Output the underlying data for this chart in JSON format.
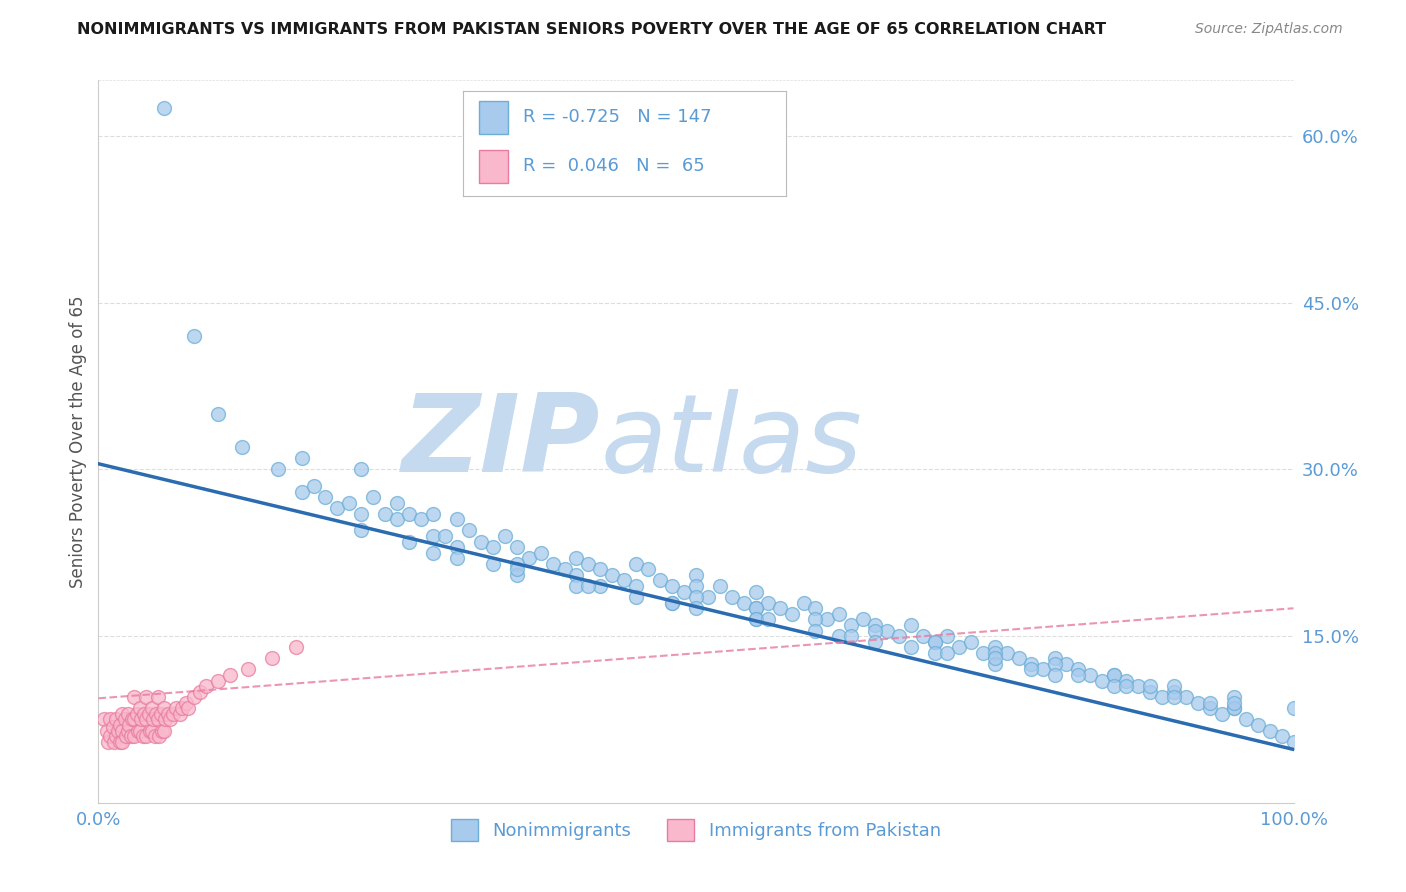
{
  "title": "NONIMMIGRANTS VS IMMIGRANTS FROM PAKISTAN SENIORS POVERTY OVER THE AGE OF 65 CORRELATION CHART",
  "source": "Source: ZipAtlas.com",
  "ylabel": "Seniors Poverty Over the Age of 65",
  "watermark_zip": "ZIP",
  "watermark_atlas": "atlas",
  "xlim": [
    0.0,
    1.0
  ],
  "ylim": [
    0.0,
    0.65
  ],
  "right_yticks": [
    0.15,
    0.3,
    0.45,
    0.6
  ],
  "right_yticklabels": [
    "15.0%",
    "30.0%",
    "45.0%",
    "60.0%"
  ],
  "xtick_positions": [
    0.0,
    1.0
  ],
  "xticklabels": [
    "0.0%",
    "100.0%"
  ],
  "nonimm_color": "#A8CAED",
  "nonimm_edge_color": "#6BAED6",
  "imm_color": "#F9B8CB",
  "imm_edge_color": "#E87BA0",
  "nonimm_line_color": "#2B6CB0",
  "imm_line_color": "#E87BA0",
  "title_color": "#1a1a1a",
  "axis_color": "#5B9BD5",
  "watermark_color": "#C5D9EF",
  "background_color": "#FFFFFF",
  "grid_color": "#DDDDDD",
  "nonimm_trend_x0": 0.0,
  "nonimm_trend_y0": 0.305,
  "nonimm_trend_x1": 1.0,
  "nonimm_trend_y1": 0.048,
  "imm_trend_x0": 0.0,
  "imm_trend_y0": 0.094,
  "imm_trend_x1": 1.0,
  "imm_trend_y1": 0.175,
  "nonimmigrants_x": [
    0.055,
    0.08,
    0.1,
    0.12,
    0.15,
    0.17,
    0.17,
    0.18,
    0.19,
    0.2,
    0.21,
    0.22,
    0.22,
    0.23,
    0.24,
    0.25,
    0.25,
    0.26,
    0.27,
    0.28,
    0.28,
    0.29,
    0.3,
    0.3,
    0.31,
    0.32,
    0.33,
    0.34,
    0.35,
    0.36,
    0.37,
    0.38,
    0.39,
    0.4,
    0.41,
    0.42,
    0.43,
    0.44,
    0.45,
    0.46,
    0.47,
    0.48,
    0.49,
    0.5,
    0.5,
    0.51,
    0.52,
    0.53,
    0.54,
    0.55,
    0.55,
    0.56,
    0.57,
    0.58,
    0.59,
    0.6,
    0.61,
    0.62,
    0.63,
    0.64,
    0.65,
    0.66,
    0.67,
    0.68,
    0.69,
    0.7,
    0.71,
    0.72,
    0.73,
    0.74,
    0.75,
    0.76,
    0.77,
    0.78,
    0.79,
    0.8,
    0.81,
    0.82,
    0.83,
    0.84,
    0.85,
    0.86,
    0.87,
    0.88,
    0.89,
    0.9,
    0.91,
    0.92,
    0.93,
    0.94,
    0.95,
    0.96,
    0.97,
    0.98,
    0.99,
    1.0,
    0.35,
    0.4,
    0.45,
    0.5,
    0.55,
    0.6,
    0.65,
    0.7,
    0.75,
    0.8,
    0.85,
    0.9,
    0.95,
    1.0,
    0.3,
    0.35,
    0.4,
    0.45,
    0.5,
    0.55,
    0.6,
    0.65,
    0.7,
    0.75,
    0.8,
    0.85,
    0.9,
    0.95,
    0.22,
    0.28,
    0.35,
    0.42,
    0.48,
    0.55,
    0.62,
    0.68,
    0.75,
    0.82,
    0.88,
    0.95,
    0.26,
    0.33,
    0.41,
    0.48,
    0.56,
    0.63,
    0.71,
    0.78,
    0.86,
    0.93
  ],
  "nonimmigrants_y": [
    0.625,
    0.42,
    0.35,
    0.32,
    0.3,
    0.31,
    0.28,
    0.285,
    0.275,
    0.265,
    0.27,
    0.3,
    0.26,
    0.275,
    0.26,
    0.255,
    0.27,
    0.26,
    0.255,
    0.26,
    0.24,
    0.24,
    0.255,
    0.23,
    0.245,
    0.235,
    0.23,
    0.24,
    0.23,
    0.22,
    0.225,
    0.215,
    0.21,
    0.22,
    0.215,
    0.21,
    0.205,
    0.2,
    0.215,
    0.21,
    0.2,
    0.195,
    0.19,
    0.205,
    0.195,
    0.185,
    0.195,
    0.185,
    0.18,
    0.175,
    0.19,
    0.18,
    0.175,
    0.17,
    0.18,
    0.175,
    0.165,
    0.17,
    0.16,
    0.165,
    0.16,
    0.155,
    0.15,
    0.16,
    0.15,
    0.145,
    0.15,
    0.14,
    0.145,
    0.135,
    0.14,
    0.135,
    0.13,
    0.125,
    0.12,
    0.13,
    0.125,
    0.12,
    0.115,
    0.11,
    0.115,
    0.11,
    0.105,
    0.1,
    0.095,
    0.1,
    0.095,
    0.09,
    0.085,
    0.08,
    0.085,
    0.075,
    0.07,
    0.065,
    0.06,
    0.055,
    0.215,
    0.205,
    0.195,
    0.185,
    0.175,
    0.165,
    0.155,
    0.145,
    0.135,
    0.125,
    0.115,
    0.105,
    0.095,
    0.085,
    0.22,
    0.205,
    0.195,
    0.185,
    0.175,
    0.165,
    0.155,
    0.145,
    0.135,
    0.125,
    0.115,
    0.105,
    0.095,
    0.085,
    0.245,
    0.225,
    0.21,
    0.195,
    0.18,
    0.165,
    0.15,
    0.14,
    0.13,
    0.115,
    0.105,
    0.09,
    0.235,
    0.215,
    0.195,
    0.18,
    0.165,
    0.15,
    0.135,
    0.12,
    0.105,
    0.09
  ],
  "immigrants_x": [
    0.005,
    0.007,
    0.008,
    0.01,
    0.01,
    0.012,
    0.013,
    0.015,
    0.015,
    0.016,
    0.018,
    0.018,
    0.02,
    0.02,
    0.02,
    0.022,
    0.023,
    0.025,
    0.025,
    0.026,
    0.027,
    0.028,
    0.03,
    0.03,
    0.03,
    0.032,
    0.033,
    0.035,
    0.035,
    0.036,
    0.037,
    0.038,
    0.04,
    0.04,
    0.04,
    0.042,
    0.043,
    0.045,
    0.045,
    0.046,
    0.047,
    0.048,
    0.05,
    0.05,
    0.051,
    0.052,
    0.053,
    0.055,
    0.055,
    0.056,
    0.058,
    0.06,
    0.062,
    0.065,
    0.068,
    0.07,
    0.073,
    0.075,
    0.08,
    0.085,
    0.09,
    0.1,
    0.11,
    0.125,
    0.145,
    0.165
  ],
  "immigrants_y": [
    0.075,
    0.065,
    0.055,
    0.075,
    0.06,
    0.068,
    0.055,
    0.075,
    0.06,
    0.065,
    0.07,
    0.055,
    0.08,
    0.065,
    0.055,
    0.075,
    0.06,
    0.08,
    0.065,
    0.07,
    0.06,
    0.075,
    0.095,
    0.075,
    0.06,
    0.08,
    0.065,
    0.085,
    0.065,
    0.075,
    0.06,
    0.08,
    0.095,
    0.075,
    0.06,
    0.08,
    0.065,
    0.085,
    0.065,
    0.075,
    0.06,
    0.08,
    0.095,
    0.075,
    0.06,
    0.08,
    0.065,
    0.085,
    0.065,
    0.075,
    0.08,
    0.075,
    0.08,
    0.085,
    0.08,
    0.085,
    0.09,
    0.085,
    0.095,
    0.1,
    0.105,
    0.11,
    0.115,
    0.12,
    0.13,
    0.14
  ]
}
